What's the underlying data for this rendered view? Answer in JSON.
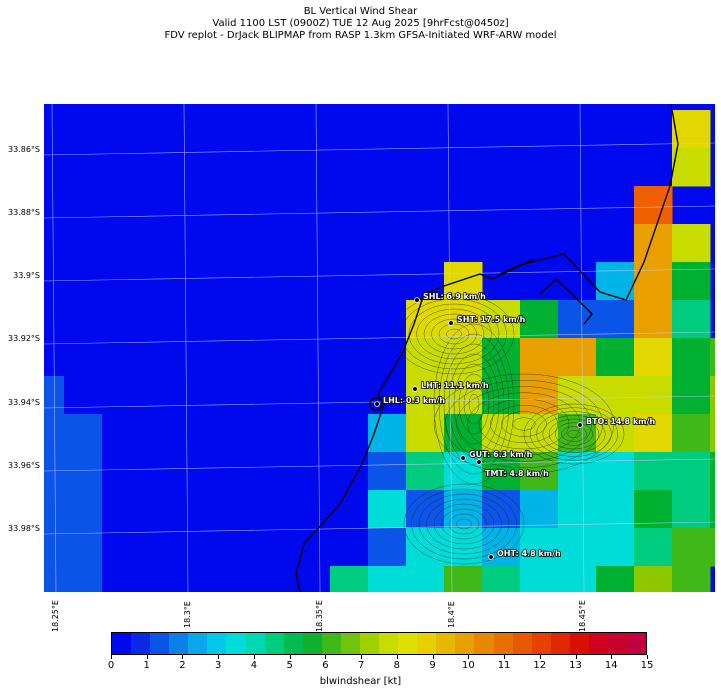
{
  "titles": {
    "line1": "BL Vertical Wind Shear",
    "line2": "Valid 1100 LST (0900Z) TUE 12 Aug 2025 [9hrFcst@0450z]",
    "line3": "FDV replot - DrJack BLIPMAP from RASP 1.3km GFSA-Initiated WRF-ARW model"
  },
  "axes": {
    "lat_labels": [
      "33.86°S",
      "33.88°S",
      "33.9°S",
      "33.92°S",
      "33.94°S",
      "33.96°S",
      "33.98°S"
    ],
    "lon_labels": [
      "18.25°E",
      "18.3°E",
      "18.35°E",
      "18.4°E",
      "18.45°E"
    ]
  },
  "stations": [
    {
      "name": "SHL",
      "value": "6.9 km/h",
      "label": "SHL: 6.9 km/h"
    },
    {
      "name": "SHT",
      "value": "17.5 km/h",
      "label": "SHT: 17.5 km/h"
    },
    {
      "name": "LHT",
      "value": "11.1 km/h",
      "label": "LHT: 11.1 km/h"
    },
    {
      "name": "LHL",
      "value": "0.3 km/h",
      "label": "LHL: 0.3 km/h"
    },
    {
      "name": "BTO",
      "value": "14.8 km/h",
      "label": "BTO: 14.8 km/h"
    },
    {
      "name": "GUT",
      "value": "6.3 km/h",
      "label": "GUT: 6.3 km/h"
    },
    {
      "name": "TMT",
      "value": "4.8 km/h",
      "label": "TMT: 4.8 km/h"
    },
    {
      "name": "OHT",
      "value": "4.8 km/h",
      "label": "OHT: 4.8 km/h"
    }
  ],
  "colorbar": {
    "label": "blwindshear [kt]",
    "ticks": [
      "0",
      "1",
      "2",
      "3",
      "4",
      "5",
      "6",
      "7",
      "8",
      "9",
      "10",
      "11",
      "12",
      "13",
      "14",
      "15"
    ],
    "colors": [
      "#0008ee",
      "#0a2ae8",
      "#0a55e8",
      "#0a80e8",
      "#0aa8e8",
      "#00c8e8",
      "#00dcd8",
      "#00d8b0",
      "#00cc80",
      "#00bb50",
      "#10b030",
      "#40b818",
      "#70c410",
      "#a0d000",
      "#c8dc00",
      "#e0e000",
      "#e8d000",
      "#e8b800",
      "#e8a000",
      "#e88800",
      "#e87000",
      "#e85800",
      "#e84000",
      "#e02800",
      "#d81000",
      "#d00020",
      "#c80030",
      "#c00040"
    ]
  },
  "field_colors": {
    "water": "#0008ee",
    "coast": "#000000",
    "grid": "#aab4ff"
  }
}
